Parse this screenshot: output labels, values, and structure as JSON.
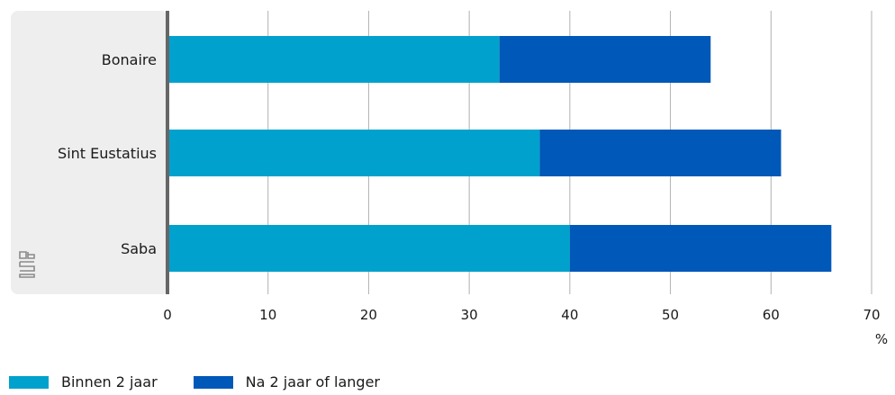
{
  "chart_data": {
    "type": "bar",
    "orientation": "horizontal",
    "stacked": true,
    "categories": [
      "Bonaire",
      "Sint Eustatius",
      "Saba"
    ],
    "series": [
      {
        "name": "Binnen 2 jaar",
        "values": [
          33,
          37,
          40
        ],
        "color": "#00a1cd"
      },
      {
        "name": "Na 2 jaar of langer",
        "values": [
          21,
          24,
          26
        ],
        "color": "#0058b8"
      }
    ],
    "xlim": [
      0,
      70
    ],
    "xticks": [
      0,
      10,
      20,
      30,
      40,
      50,
      60,
      70
    ],
    "xunit": "%",
    "grid": true,
    "legend_position": "bottom-left"
  },
  "colors": {
    "label_panel": "#eeeeee",
    "axis_line": "#666666",
    "grid": "#b0b0b0"
  },
  "icons": {
    "logo": "cbs-logo-icon"
  }
}
